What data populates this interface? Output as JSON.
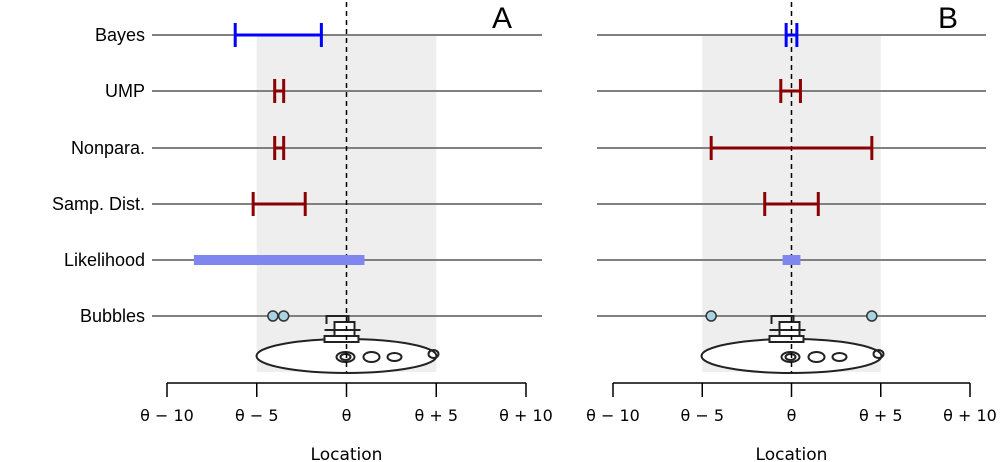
{
  "chart_data": {
    "type": "interval",
    "xlabel": "Location",
    "xlim": [
      -10,
      10
    ],
    "tick_values": [
      -10,
      -5,
      0,
      5,
      10
    ],
    "tick_labels": [
      "θ − 10",
      "θ − 5",
      "θ",
      "θ + 5",
      "θ + 10"
    ],
    "shaded_region": [
      -5,
      5
    ],
    "reference_line": 0,
    "rows": [
      "Bayes",
      "UMP",
      "Nonpara.",
      "Samp. Dist.",
      "Likelihood",
      "Bubbles"
    ],
    "colors": {
      "bayes": "#0000ff",
      "frequentist": "#8b0000",
      "likelihood": "#7f86f0",
      "bubble_fill": "#a8d3e0",
      "shade": "#eeeeee"
    },
    "panels": [
      {
        "label": "A",
        "intervals": {
          "Bayes": [
            -6.2,
            -1.4
          ],
          "UMP": [
            -4,
            -3.5
          ],
          "Nonpara.": [
            -4,
            -3.5
          ],
          "Samp. Dist.": [
            -5.2,
            -2.3
          ],
          "Likelihood": [
            -8.5,
            1
          ]
        },
        "bubbles": [
          -4.1,
          -3.5
        ]
      },
      {
        "label": "B",
        "intervals": {
          "Bayes": [
            -0.3,
            0.3
          ],
          "UMP": [
            -0.6,
            0.5
          ],
          "Nonpara.": [
            -4.5,
            4.5
          ],
          "Samp. Dist.": [
            -1.5,
            1.5
          ],
          "Likelihood": [
            -0.5,
            0.5
          ]
        },
        "bubbles": [
          -4.5,
          4.5
        ]
      }
    ]
  }
}
